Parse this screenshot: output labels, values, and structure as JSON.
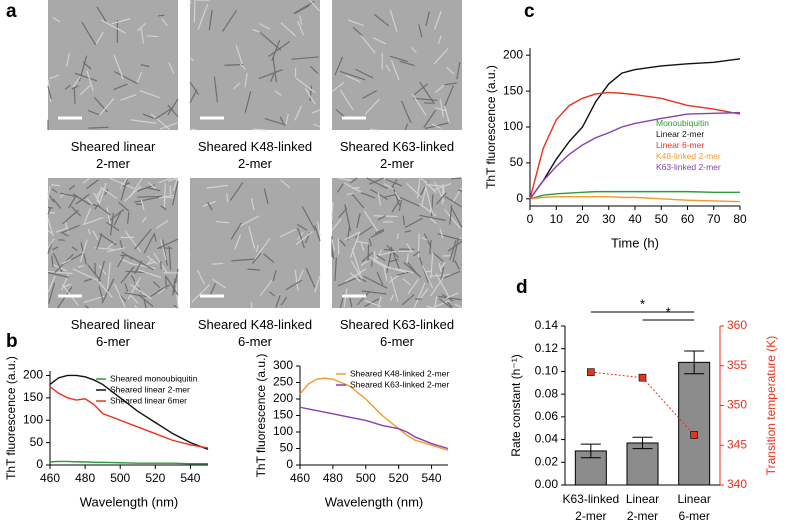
{
  "panels": {
    "a": {
      "letter": "a",
      "captions": [
        "Sheared linear\n2-mer",
        "Sheared K48-linked\n2-mer",
        "Sheared K63-linked\n2-mer",
        "Sheared linear\n6-mer",
        "Sheared K48-linked\n6-mer",
        "Sheared K63-linked\n6-mer"
      ]
    },
    "b": {
      "letter": "b"
    },
    "c": {
      "letter": "c"
    },
    "d": {
      "letter": "d"
    }
  },
  "chart_data": [
    {
      "type": "line",
      "xlabel": "Wavelength (nm)",
      "ylabel": "ThT fluorescence (a.u.)",
      "legend": "upper right",
      "x": [
        460,
        465,
        470,
        475,
        480,
        485,
        490,
        500,
        510,
        520,
        530,
        540,
        550
      ],
      "xlim": [
        460,
        550
      ],
      "xticks": [
        460,
        480,
        500,
        520,
        540
      ],
      "ylim": [
        0,
        210
      ],
      "yticks": [
        0,
        50,
        100,
        150,
        200
      ],
      "series": [
        {
          "name": "Sheared monoubiquitin",
          "color": "#2e9a3a",
          "values": [
            7,
            8,
            8,
            7,
            7,
            6,
            6,
            5,
            4,
            4,
            4,
            3,
            3
          ]
        },
        {
          "name": "Sheared linear 2-mer",
          "color": "#111111",
          "values": [
            180,
            195,
            200,
            200,
            197,
            190,
            180,
            150,
            120,
            95,
            70,
            50,
            35
          ]
        },
        {
          "name": "Sheared linear 6mer",
          "color": "#e8321e",
          "values": [
            175,
            160,
            150,
            145,
            148,
            135,
            115,
            100,
            85,
            70,
            55,
            45,
            38
          ]
        }
      ]
    },
    {
      "type": "line",
      "xlabel": "Wavelength (nm)",
      "ylabel": "ThT fluorescence (a.u.)",
      "legend": "upper right",
      "x": [
        460,
        465,
        470,
        475,
        480,
        490,
        500,
        510,
        520,
        525,
        530,
        540,
        550
      ],
      "xlim": [
        460,
        550
      ],
      "xticks": [
        460,
        480,
        500,
        520,
        540
      ],
      "ylim": [
        0,
        300
      ],
      "yticks": [
        0,
        50,
        100,
        150,
        200,
        250,
        300
      ],
      "series": [
        {
          "name": "Sheared K48-linked 2-mer",
          "color": "#f39a2b",
          "values": [
            215,
            245,
            260,
            263,
            260,
            240,
            200,
            150,
            110,
            90,
            75,
            60,
            45
          ]
        },
        {
          "name": "Sheared K63-linked 2-mer",
          "color": "#8a3fb0",
          "values": [
            175,
            170,
            165,
            160,
            155,
            145,
            135,
            120,
            110,
            100,
            85,
            65,
            50
          ]
        }
      ]
    },
    {
      "type": "line",
      "xlabel": "Time (h)",
      "ylabel": "ThT fluorescence (a.u.)",
      "legend": "center right",
      "x": [
        0,
        5,
        10,
        15,
        20,
        25,
        30,
        35,
        40,
        50,
        60,
        70,
        80
      ],
      "xlim": [
        0,
        80
      ],
      "xticks": [
        0,
        10,
        20,
        30,
        40,
        50,
        60,
        70,
        80
      ],
      "ylim": [
        -10,
        210
      ],
      "yticks": [
        0,
        50,
        100,
        150,
        200
      ],
      "series": [
        {
          "name": "Monoubiquitin",
          "color": "#2e9a3a",
          "values": [
            0,
            5,
            7,
            8,
            9,
            10,
            10,
            10,
            10,
            10,
            10,
            9,
            9
          ]
        },
        {
          "name": "Linear 2-mer",
          "color": "#111111",
          "values": [
            0,
            25,
            55,
            80,
            100,
            135,
            160,
            175,
            180,
            185,
            188,
            190,
            195
          ]
        },
        {
          "name": "Linear 6-mer",
          "color": "#e8321e",
          "values": [
            0,
            70,
            110,
            130,
            140,
            146,
            148,
            147,
            145,
            140,
            130,
            125,
            118
          ]
        },
        {
          "name": "K48-linked 2-mer",
          "color": "#f39a2b",
          "values": [
            0,
            2,
            3,
            3,
            3,
            3,
            3,
            2,
            2,
            0,
            -2,
            -3,
            -4
          ]
        },
        {
          "name": "K63-linked 2-mer",
          "color": "#8a3fb0",
          "values": [
            0,
            25,
            45,
            62,
            75,
            85,
            92,
            100,
            105,
            112,
            118,
            119,
            120
          ]
        }
      ]
    },
    {
      "type": "bar",
      "ylabel": "Rate constant (h⁻¹)",
      "y2label": "Transition temperature (K)",
      "categories": [
        "K63-linked\n2-mer",
        "Linear\n2-mer",
        "Linear\n6-mer"
      ],
      "values": [
        0.03,
        0.037,
        0.108
      ],
      "errors": [
        0.006,
        0.005,
        0.01
      ],
      "color": "#8c8c8c",
      "y2_values": [
        354.2,
        353.5,
        346.3
      ],
      "y2_color": "#e8321e",
      "ylim": [
        0,
        0.14
      ],
      "yticks": [
        {
          "value": 0,
          "label": "0.00"
        },
        {
          "value": 0.02,
          "label": "0.02"
        },
        {
          "value": 0.04,
          "label": "0.04"
        },
        {
          "value": 0.06,
          "label": "0.06"
        },
        {
          "value": 0.08,
          "label": "0.08"
        },
        {
          "value": 0.1,
          "label": "0.10"
        },
        {
          "value": 0.12,
          "label": "0.12"
        },
        {
          "value": 0.14,
          "label": "0.14"
        }
      ],
      "y2lim": [
        340,
        360
      ],
      "y2ticks": [
        340,
        345,
        350,
        355,
        360
      ],
      "annotations": [
        "*",
        "*"
      ]
    }
  ]
}
